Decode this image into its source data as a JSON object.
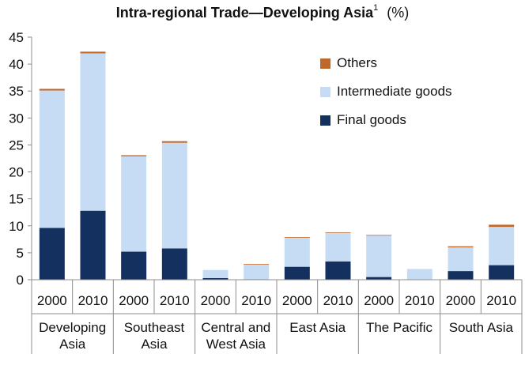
{
  "title": {
    "main": "Intra-regional Trade—Developing Asia",
    "footnote": "1",
    "unit": "(%)"
  },
  "legend": [
    {
      "key": "others",
      "label": "Others",
      "color": "#c0682a"
    },
    {
      "key": "intermediate",
      "label": "Intermediate goods",
      "color": "#c6dcf4"
    },
    {
      "key": "final",
      "label": "Final goods",
      "color": "#13305e"
    }
  ],
  "chart_data": {
    "type": "bar",
    "stacked": true,
    "ylim": [
      0,
      45
    ],
    "yticks": [
      0,
      5,
      10,
      15,
      20,
      25,
      30,
      35,
      40,
      45
    ],
    "categories": [
      "2000",
      "2010",
      "2000",
      "2010",
      "2000",
      "2010",
      "2000",
      "2010",
      "2000",
      "2010",
      "2000",
      "2010"
    ],
    "groups": [
      {
        "label": [
          "Developing",
          "Asia"
        ]
      },
      {
        "label": [
          "Southeast",
          "Asia"
        ]
      },
      {
        "label": [
          "Central and",
          "West Asia"
        ]
      },
      {
        "label": [
          "East Asia"
        ]
      },
      {
        "label": [
          "The Pacific"
        ]
      },
      {
        "label": [
          "South Asia"
        ]
      }
    ],
    "series": [
      {
        "name": "Final goods",
        "color": "#13305e",
        "values": [
          9.6,
          12.8,
          5.2,
          5.8,
          0.3,
          0.1,
          2.4,
          3.4,
          0.5,
          0.0,
          1.6,
          2.7
        ]
      },
      {
        "name": "Intermediate goods",
        "color": "#c6dcf4",
        "values": [
          25.5,
          29.2,
          17.7,
          19.6,
          1.5,
          2.7,
          5.4,
          5.3,
          7.7,
          2.0,
          4.4,
          7.1
        ]
      },
      {
        "name": "Others",
        "color": "#c0682a",
        "values": [
          0.3,
          0.3,
          0.2,
          0.3,
          0.0,
          0.1,
          0.1,
          0.1,
          0.1,
          0.0,
          0.2,
          0.4
        ]
      }
    ]
  }
}
